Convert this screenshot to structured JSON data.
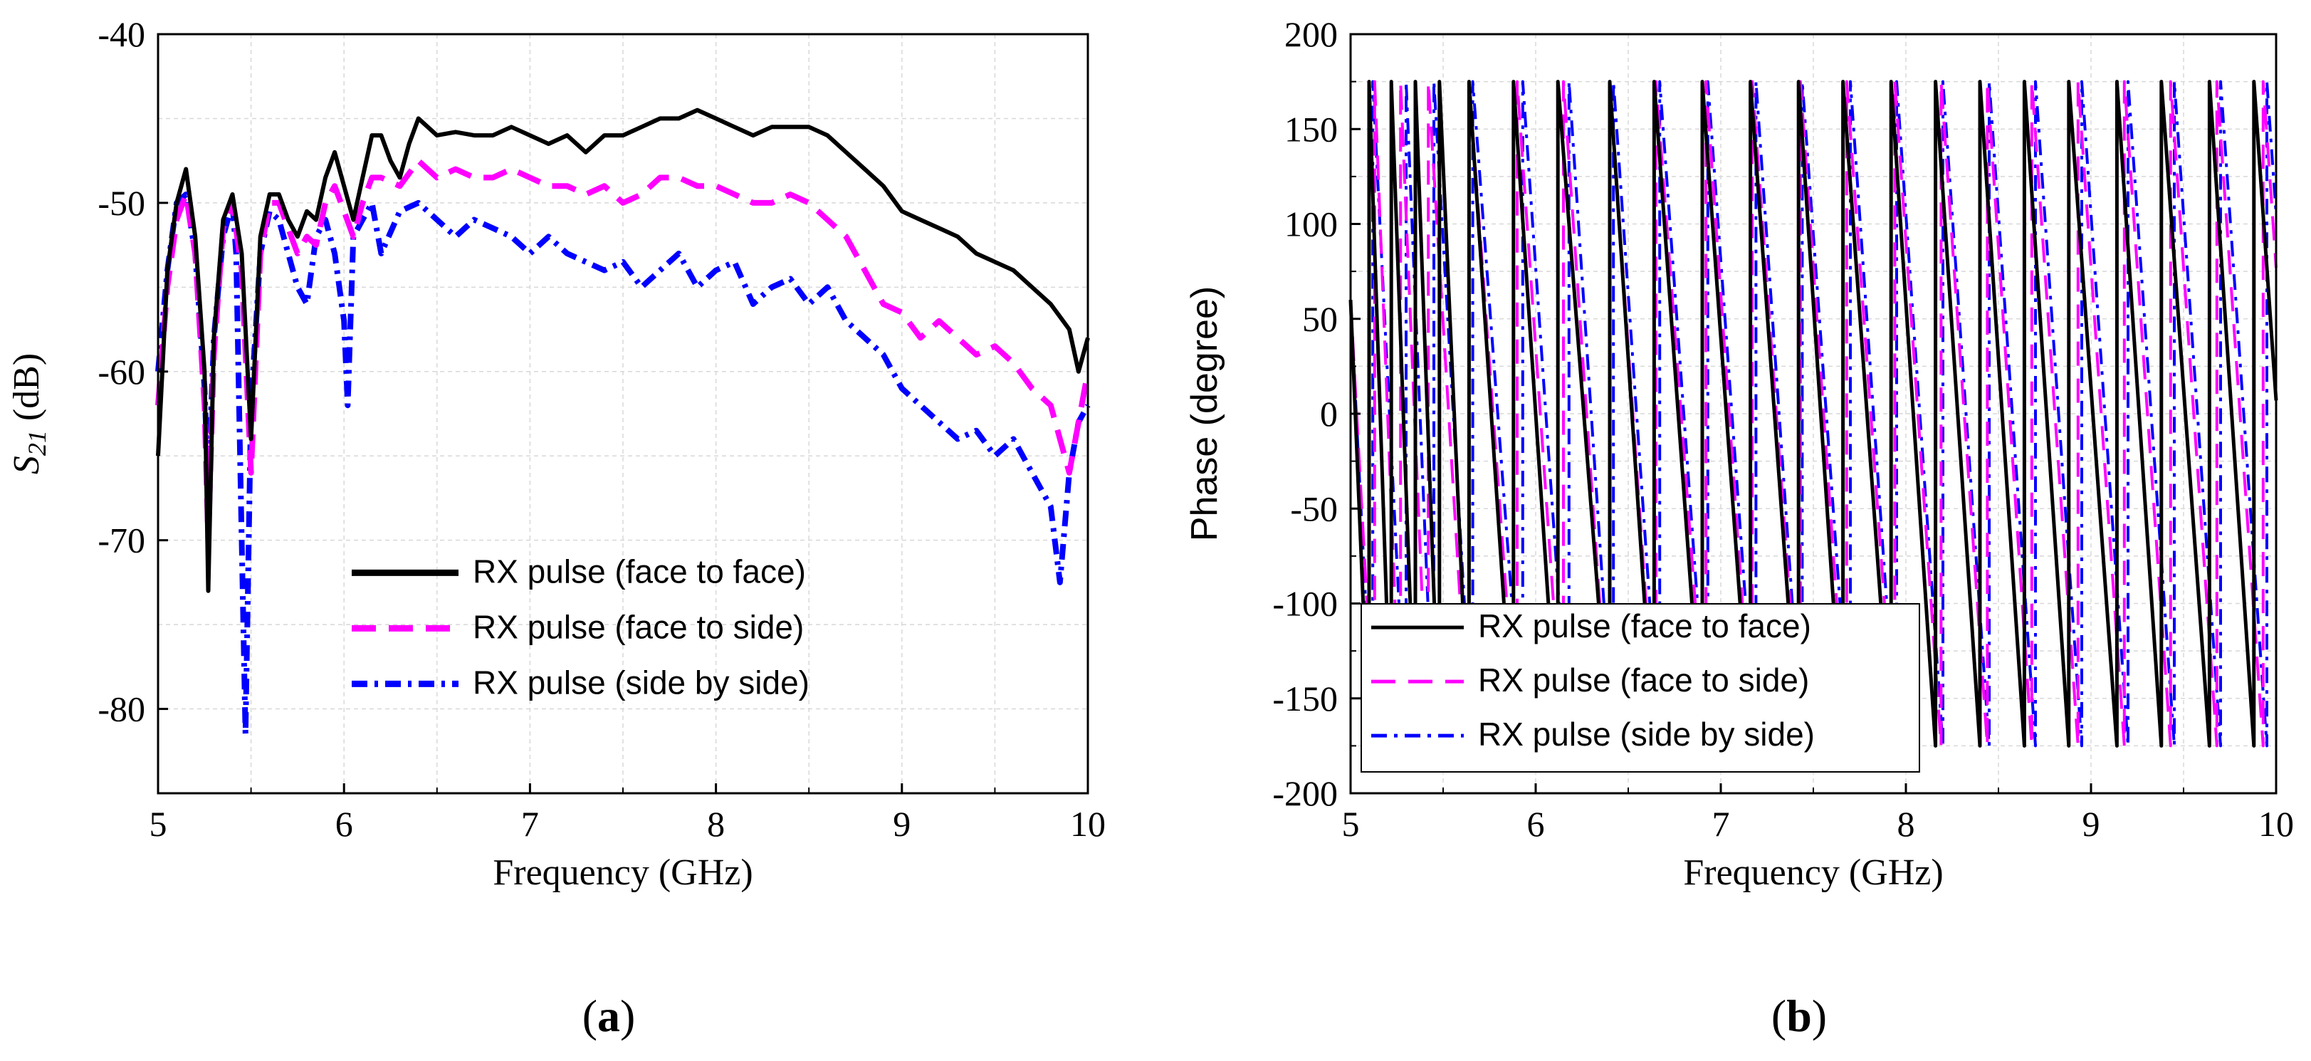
{
  "chart_data": [
    {
      "type": "line",
      "panel": "(a)",
      "panel_letter": "a",
      "title": "",
      "xlabel": "Frequency (GHz)",
      "ylabel_main": "S",
      "ylabel_sub": "21",
      "ylabel_unit": " (dB)",
      "xlim": [
        5,
        10
      ],
      "ylim": [
        -85,
        -40
      ],
      "xticks": [
        5,
        6,
        7,
        8,
        9,
        10
      ],
      "yticks": [
        -80,
        -70,
        -60,
        -50,
        -40
      ],
      "grid": true,
      "legend_position": "bottom-center",
      "series": [
        {
          "name": "RX pulse (face to face)",
          "color": "#000000",
          "style": "solid",
          "x": [
            5.0,
            5.05,
            5.1,
            5.15,
            5.2,
            5.25,
            5.27,
            5.3,
            5.35,
            5.4,
            5.45,
            5.5,
            5.55,
            5.6,
            5.65,
            5.7,
            5.75,
            5.8,
            5.85,
            5.9,
            5.95,
            6.0,
            6.05,
            6.1,
            6.15,
            6.2,
            6.25,
            6.3,
            6.35,
            6.4,
            6.5,
            6.6,
            6.7,
            6.8,
            6.9,
            7.0,
            7.1,
            7.2,
            7.3,
            7.4,
            7.5,
            7.6,
            7.7,
            7.8,
            7.9,
            8.0,
            8.1,
            8.2,
            8.3,
            8.4,
            8.5,
            8.6,
            8.7,
            8.8,
            8.9,
            9.0,
            9.1,
            9.2,
            9.3,
            9.4,
            9.5,
            9.6,
            9.7,
            9.8,
            9.9,
            9.95,
            10.0
          ],
          "y": [
            -65,
            -54,
            -50,
            -48,
            -52,
            -60,
            -73,
            -58,
            -51,
            -49.5,
            -53,
            -64,
            -52,
            -49.5,
            -49.5,
            -51,
            -52,
            -50.5,
            -51,
            -48.5,
            -47,
            -49,
            -51,
            -48.5,
            -46,
            -46,
            -47.5,
            -48.5,
            -46.5,
            -45,
            -46,
            -45.8,
            -46,
            -46,
            -45.5,
            -46,
            -46.5,
            -46,
            -47,
            -46,
            -46,
            -45.5,
            -45,
            -45,
            -44.5,
            -45,
            -45.5,
            -46,
            -45.5,
            -45.5,
            -45.5,
            -46,
            -47,
            -48,
            -49,
            -50.5,
            -51,
            -51.5,
            -52,
            -53,
            -53.5,
            -54,
            -55,
            -56,
            -57.5,
            -60,
            -58
          ]
        },
        {
          "name": "RX pulse (face to side)",
          "color": "#ff00ff",
          "style": "dashed",
          "x": [
            5.0,
            5.05,
            5.1,
            5.15,
            5.2,
            5.25,
            5.27,
            5.3,
            5.35,
            5.4,
            5.45,
            5.5,
            5.55,
            5.6,
            5.65,
            5.7,
            5.75,
            5.8,
            5.85,
            5.9,
            5.95,
            6.0,
            6.05,
            6.1,
            6.15,
            6.2,
            6.3,
            6.4,
            6.5,
            6.6,
            6.7,
            6.8,
            6.9,
            7.0,
            7.1,
            7.2,
            7.3,
            7.4,
            7.5,
            7.6,
            7.7,
            7.8,
            7.9,
            8.0,
            8.1,
            8.2,
            8.3,
            8.4,
            8.5,
            8.6,
            8.7,
            8.8,
            8.9,
            9.0,
            9.1,
            9.2,
            9.3,
            9.4,
            9.5,
            9.6,
            9.7,
            9.8,
            9.85,
            9.9,
            10.0
          ],
          "y": [
            -62,
            -55,
            -51,
            -49.5,
            -53,
            -62,
            -70,
            -59,
            -51.5,
            -50,
            -54,
            -66,
            -53,
            -50,
            -50,
            -51.5,
            -53,
            -52,
            -52.5,
            -50,
            -49,
            -50.5,
            -52,
            -50,
            -48.5,
            -48.5,
            -49,
            -47.5,
            -48.5,
            -48,
            -48.5,
            -48.5,
            -48,
            -48.5,
            -49,
            -49,
            -49.5,
            -49,
            -50,
            -49.5,
            -48.5,
            -48.5,
            -49,
            -49,
            -49.5,
            -50,
            -50,
            -49.5,
            -50,
            -51,
            -52,
            -54,
            -56,
            -56.5,
            -58,
            -57,
            -58,
            -59,
            -58.5,
            -59.5,
            -61,
            -62,
            -64,
            -66,
            -60
          ]
        },
        {
          "name": "RX pulse (side by side)",
          "color": "#0000ff",
          "style": "dashdot",
          "x": [
            5.0,
            5.05,
            5.1,
            5.15,
            5.2,
            5.25,
            5.27,
            5.3,
            5.35,
            5.4,
            5.42,
            5.45,
            5.47,
            5.5,
            5.55,
            5.6,
            5.65,
            5.7,
            5.75,
            5.8,
            5.85,
            5.9,
            5.95,
            6.0,
            6.02,
            6.05,
            6.1,
            6.15,
            6.2,
            6.3,
            6.4,
            6.5,
            6.6,
            6.7,
            6.8,
            6.9,
            7.0,
            7.1,
            7.2,
            7.3,
            7.4,
            7.5,
            7.6,
            7.7,
            7.8,
            7.9,
            8.0,
            8.1,
            8.2,
            8.3,
            8.4,
            8.5,
            8.6,
            8.7,
            8.8,
            8.9,
            9.0,
            9.1,
            9.2,
            9.3,
            9.4,
            9.5,
            9.6,
            9.7,
            9.8,
            9.85,
            9.9,
            9.95,
            10.0
          ],
          "y": [
            -60,
            -54,
            -50,
            -49.5,
            -53,
            -61,
            -67,
            -58,
            -52,
            -50,
            -53,
            -70,
            -81.5,
            -62,
            -53,
            -50.5,
            -51,
            -53,
            -55,
            -56,
            -52,
            -51,
            -53,
            -57,
            -62,
            -52,
            -51,
            -50,
            -53,
            -50.5,
            -50,
            -51,
            -52,
            -51,
            -51.5,
            -52,
            -53,
            -52,
            -53,
            -53.5,
            -54,
            -53.5,
            -55,
            -54,
            -53,
            -55,
            -54,
            -53.5,
            -56,
            -55,
            -54.5,
            -56,
            -55,
            -57,
            -58,
            -59,
            -61,
            -62,
            -63,
            -64,
            -63.5,
            -65,
            -64,
            -66,
            -68,
            -72.5,
            -66,
            -63,
            -62
          ]
        }
      ]
    },
    {
      "type": "line",
      "panel": "(b)",
      "panel_letter": "b",
      "title": "",
      "xlabel": "Frequency (GHz)",
      "ylabel": "Phase (degree)",
      "xlim": [
        5,
        10
      ],
      "ylim": [
        -200,
        200
      ],
      "xticks": [
        5,
        6,
        7,
        8,
        9,
        10
      ],
      "yticks": [
        -200,
        -150,
        -100,
        -50,
        0,
        50,
        100,
        150,
        200
      ],
      "grid": true,
      "legend_position": "bottom-left",
      "note": "phase wraps between about -175 and +175 degrees; three curves nearly overlap",
      "series": [
        {
          "name": "RX pulse (face to face)",
          "color": "#000000",
          "style": "solid",
          "wrap_points_ghz": [
            5.1,
            5.22,
            5.35,
            5.48,
            5.64,
            5.88,
            6.12,
            6.4,
            6.64,
            6.9,
            7.16,
            7.42,
            7.66,
            7.92,
            8.16,
            8.4,
            8.64,
            8.88,
            9.14,
            9.38,
            9.64,
            9.88
          ],
          "phase_range": [
            -175,
            175
          ]
        },
        {
          "name": "RX pulse (face to side)",
          "color": "#ff00ff",
          "style": "dashed",
          "wrap_points_ghz": [
            5.13,
            5.27,
            5.42,
            5.64,
            5.9,
            6.15,
            6.4,
            6.65,
            6.92,
            7.17,
            7.43,
            7.68,
            7.94,
            8.19,
            8.44,
            8.68,
            8.93,
            9.18,
            9.43,
            9.68,
            9.93
          ],
          "phase_range": [
            -175,
            175
          ]
        },
        {
          "name": "RX pulse (side by side)",
          "color": "#0000ff",
          "style": "dashdot",
          "wrap_points_ghz": [
            5.12,
            5.3,
            5.45,
            5.66,
            5.93,
            6.18,
            6.42,
            6.67,
            6.93,
            7.19,
            7.44,
            7.7,
            7.95,
            8.2,
            8.45,
            8.7,
            8.95,
            9.2,
            9.45,
            9.7,
            9.95
          ],
          "phase_range": [
            -175,
            175
          ]
        }
      ]
    }
  ]
}
